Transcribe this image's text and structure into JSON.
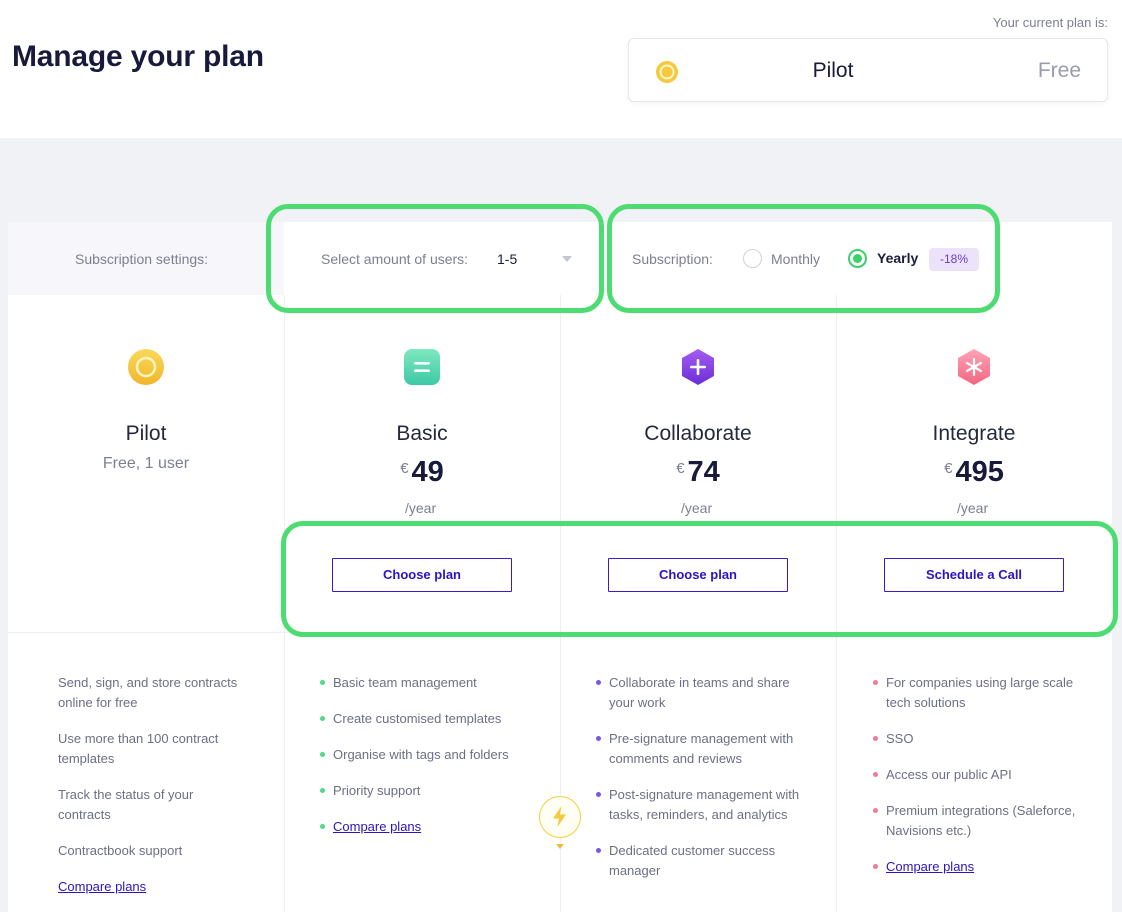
{
  "header": {
    "title": "Manage your plan",
    "current_plan_label": "Your current plan is:",
    "current_plan_name": "Pilot",
    "current_plan_price": "Free"
  },
  "settings": {
    "label": "Subscription settings:",
    "users_label": "Select amount of users:",
    "users_value": "1-5",
    "subscription_label": "Subscription:",
    "monthly_label": "Monthly",
    "yearly_label": "Yearly",
    "selected": "Yearly",
    "discount_badge": "-18%"
  },
  "plans": [
    {
      "name": "Pilot",
      "subtitle": "Free, 1 user",
      "icon": "coin-icon",
      "features": [
        "Send, sign, and store contracts online for free",
        "Use more than 100 contract templates",
        "Track the status of your contracts",
        "Contractbook support"
      ],
      "compare_link": "Compare plans"
    },
    {
      "name": "Basic",
      "currency": "€",
      "price": "49",
      "period": "/year",
      "icon": "equals-icon",
      "button": "Choose plan",
      "features": [
        "Basic team management",
        "Create customised templates",
        "Organise with tags and folders",
        "Priority support"
      ],
      "compare_link": "Compare plans"
    },
    {
      "name": "Collaborate",
      "currency": "€",
      "price": "74",
      "period": "/year",
      "icon": "plus-icon",
      "button": "Choose plan",
      "features": [
        "Collaborate in teams and share your work",
        "Pre-signature management with comments and reviews",
        "Post-signature management with tasks, reminders, and analytics",
        "Dedicated customer success manager"
      ]
    },
    {
      "name": "Integrate",
      "currency": "€",
      "price": "495",
      "period": "/year",
      "icon": "asterisk-icon",
      "button": "Schedule a Call",
      "features": [
        "For companies using large scale tech solutions",
        "SSO",
        "Access our public API",
        "Premium integrations (Saleforce, Navisions etc.)"
      ],
      "compare_link": "Compare plans"
    }
  ],
  "colors": {
    "highlight": "#4cdc71",
    "button_border": "#3a1bd1",
    "title": "#171a3b",
    "muted": "#7c7f92"
  }
}
